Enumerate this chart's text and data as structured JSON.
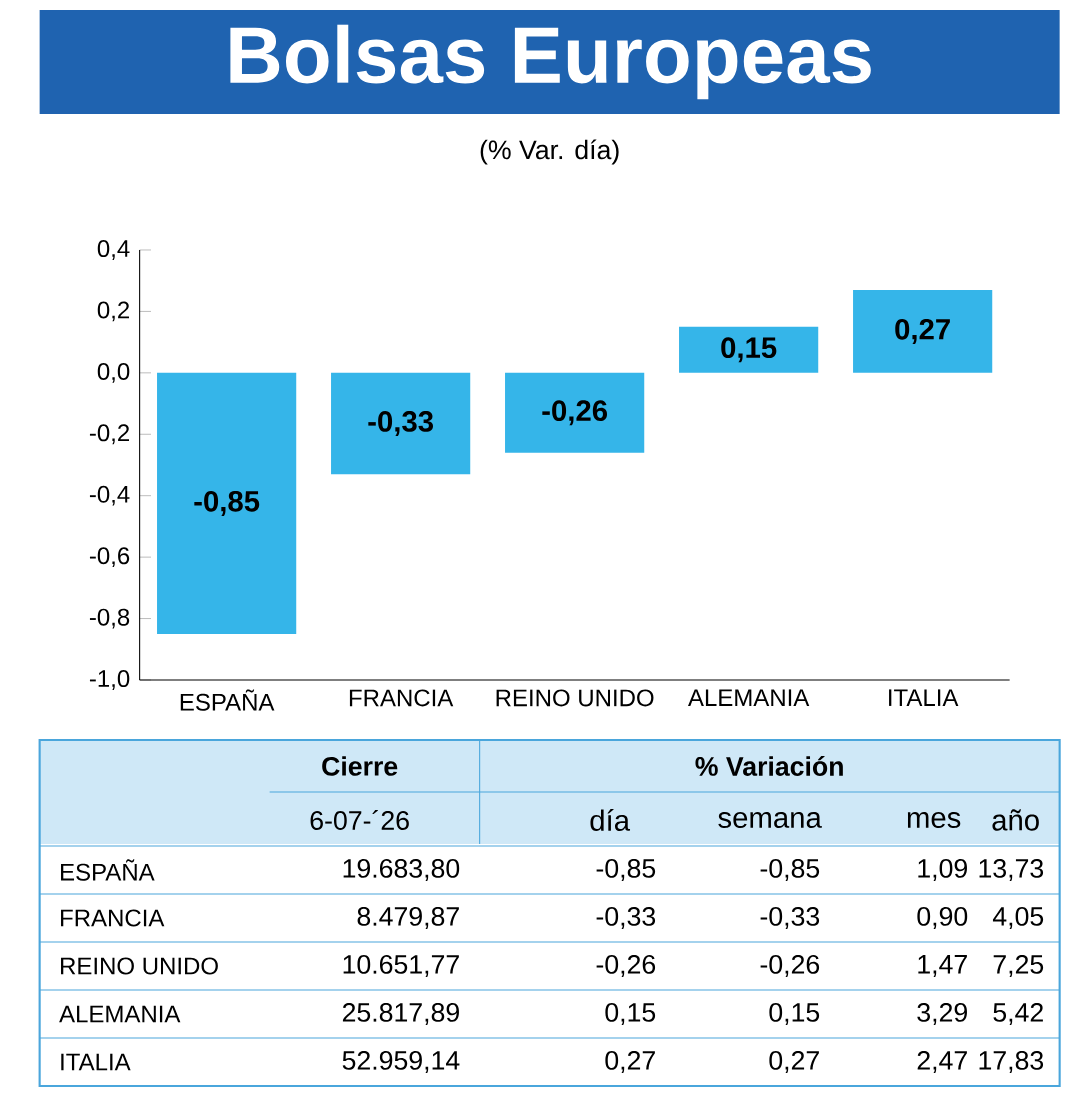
{
  "chart_data": {
    "type": "bar",
    "title": "Bolsas Europeas",
    "subtitle": "(% Var. día)",
    "categories": [
      "ESPAÑA",
      "FRANCIA",
      "REINO UNIDO",
      "ALEMANIA",
      "ITALIA"
    ],
    "values": [
      -0.85,
      -0.33,
      -0.26,
      0.15,
      0.27
    ],
    "value_labels": [
      "-0,85",
      "-0,33",
      "-0,26",
      "0,15",
      "0,27"
    ],
    "color": "#35b5e9",
    "ylim": [
      -1.0,
      0.4
    ],
    "yticks": [
      {
        "value": -1.0,
        "label": "-1,0"
      },
      {
        "value": -0.8,
        "label": "-0,8"
      },
      {
        "value": -0.6,
        "label": "-0,6"
      },
      {
        "value": -0.4,
        "label": "-0,4"
      },
      {
        "value": -0.2,
        "label": "-0,2"
      },
      {
        "value": 0.0,
        "label": "0,0"
      },
      {
        "value": 0.2,
        "label": "0,2"
      },
      {
        "value": 0.4,
        "label": "0,4"
      }
    ],
    "annotations": [
      "Cierre",
      "% Variación",
      "6-07-´26",
      "día",
      "semana",
      "mes",
      "año",
      "ESPAÑA",
      "19.683,80",
      "-0,85",
      "-0,85",
      "1,09",
      "13,73",
      "FRANCIA",
      "8.479,87",
      "-0,33",
      "-0,33",
      "0,90",
      "4,05",
      "REINO UNIDO",
      "10.651,77",
      "-0,26",
      "-0,26",
      "1,47",
      "7,25",
      "ALEMANIA",
      "25.817,89",
      "0,15",
      "0,15",
      "3,29",
      "5,42",
      "ITALIA",
      "52.959,14",
      "0,27",
      "0,27",
      "2,47",
      "17,83"
    ]
  }
}
